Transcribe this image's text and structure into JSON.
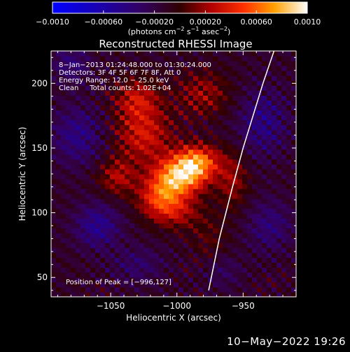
{
  "chart_data": {
    "type": "heatmap",
    "title": "Reconstructed RHESSI Image",
    "xlabel": "Heliocentric X (arcsec)",
    "ylabel": "Heliocentric Y (arcsec)",
    "xlim": [
      -1095,
      -910
    ],
    "ylim": [
      35,
      225
    ],
    "x_ticks": [
      -1050,
      -1000,
      -950
    ],
    "x_tick_labels": [
      "−1050",
      "−1000",
      "−950"
    ],
    "y_ticks": [
      50,
      100,
      150,
      200
    ],
    "y_tick_labels": [
      "50",
      "100",
      "150",
      "200"
    ],
    "colorbar": {
      "range": [
        -0.001,
        0.001
      ],
      "ticks": [
        -0.001,
        -0.0006,
        -0.0002,
        0.0002,
        0.0006,
        0.001
      ],
      "tick_labels": [
        "−0.0010",
        "−0.00060",
        "−0.00020",
        "0.00020",
        "0.00060",
        "0.0010"
      ],
      "unit_base": "(photons cm",
      "unit_exp1": "−2",
      "unit_mid": " s",
      "unit_exp2": "−1",
      "unit_mid2": " asec",
      "unit_exp3": "−2",
      "unit_end": ")"
    },
    "annotations": [
      "8−Jan−2013 01:24:48.000 to 01:30:24.000",
      "Detectors: 3F 4F 5F 6F 7F 8F, Att 0",
      "Energy Range: 12.0 − 25.0 keV",
      "Clean     Total counts: 1.02E+04"
    ],
    "peak_label": "Position of Peak = [−996,127]",
    "peak": {
      "x": -996,
      "y": 127
    },
    "limb_curve": [
      [
        -925,
        230
      ],
      [
        -935,
        200
      ],
      [
        -950,
        150
      ],
      [
        -958,
        120
      ],
      [
        -968,
        80
      ],
      [
        -976,
        40
      ]
    ],
    "blobs": [
      {
        "x": -998,
        "y": 128,
        "sx": 14,
        "sy": 10,
        "a": 0.00085
      },
      {
        "x": -985,
        "y": 140,
        "sx": 12,
        "sy": 9,
        "a": 0.0007
      },
      {
        "x": -1012,
        "y": 112,
        "sx": 12,
        "sy": 10,
        "a": 0.00055
      },
      {
        "x": -1025,
        "y": 160,
        "sx": 15,
        "sy": 15,
        "a": 0.00045
      },
      {
        "x": -1030,
        "y": 188,
        "sx": 12,
        "sy": 11,
        "a": 0.0004
      },
      {
        "x": -980,
        "y": 192,
        "sx": 14,
        "sy": 12,
        "a": 0.0003
      },
      {
        "x": -1045,
        "y": 128,
        "sx": 10,
        "sy": 10,
        "a": 0.00035
      },
      {
        "x": -958,
        "y": 125,
        "sx": 8,
        "sy": 15,
        "a": 0.0003
      },
      {
        "x": -1000,
        "y": 100,
        "sx": 14,
        "sy": 9,
        "a": 0.0003
      },
      {
        "x": -975,
        "y": 80,
        "sx": 10,
        "sy": 12,
        "a": 0.00015
      },
      {
        "x": -1060,
        "y": 90,
        "sx": 12,
        "sy": 12,
        "a": -0.00035
      },
      {
        "x": -1075,
        "y": 160,
        "sx": 14,
        "sy": 16,
        "a": -0.0003
      },
      {
        "x": -935,
        "y": 170,
        "sx": 13,
        "sy": 18,
        "a": -0.0003
      },
      {
        "x": -930,
        "y": 90,
        "sx": 12,
        "sy": 14,
        "a": -0.00025
      },
      {
        "x": -1030,
        "y": 60,
        "sx": 14,
        "sy": 10,
        "a": -0.0002
      },
      {
        "x": -965,
        "y": 55,
        "sx": 10,
        "sy": 10,
        "a": -0.00015
      },
      {
        "x": -1080,
        "y": 215,
        "sx": 10,
        "sy": 10,
        "a": -0.00025
      }
    ]
  },
  "footer": {
    "timestamp": "10−May−2022 19:26"
  }
}
